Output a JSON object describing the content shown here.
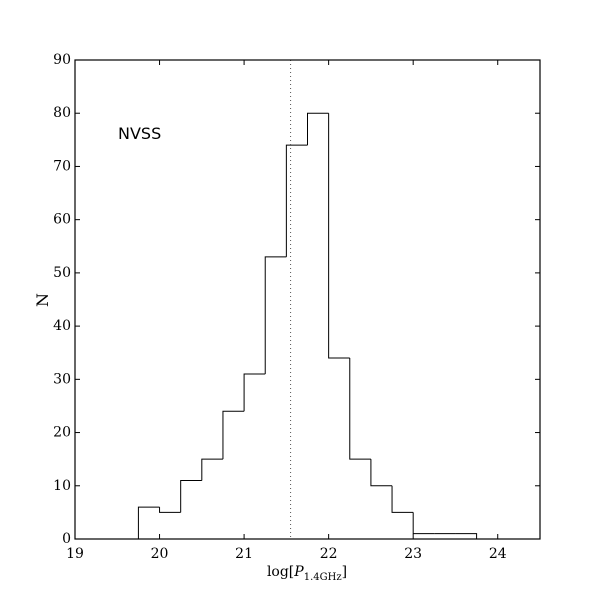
{
  "chart_data": {
    "type": "histogram",
    "annotation": "NVSS",
    "xlabel_parts": [
      "log[",
      "P",
      "1.4GHz",
      "]"
    ],
    "ylabel": "N",
    "bins": [
      19.75,
      20,
      20.25,
      20.5,
      20.75,
      21,
      21.25,
      21.5,
      21.75,
      22,
      22.25,
      22.5,
      22.75,
      23,
      23.25,
      23.5,
      23.75
    ],
    "values": [
      6,
      5,
      11,
      15,
      24,
      31,
      53,
      74,
      80,
      34,
      15,
      10,
      5,
      1,
      1,
      1
    ],
    "color": "#000000",
    "vline": 21.55,
    "xlim": [
      19,
      24.5
    ],
    "xticks": [
      19,
      20,
      21,
      22,
      23,
      24
    ],
    "ylim": [
      0,
      90
    ],
    "yticks": [
      0,
      10,
      20,
      30,
      40,
      50,
      60,
      70,
      80,
      90
    ]
  }
}
